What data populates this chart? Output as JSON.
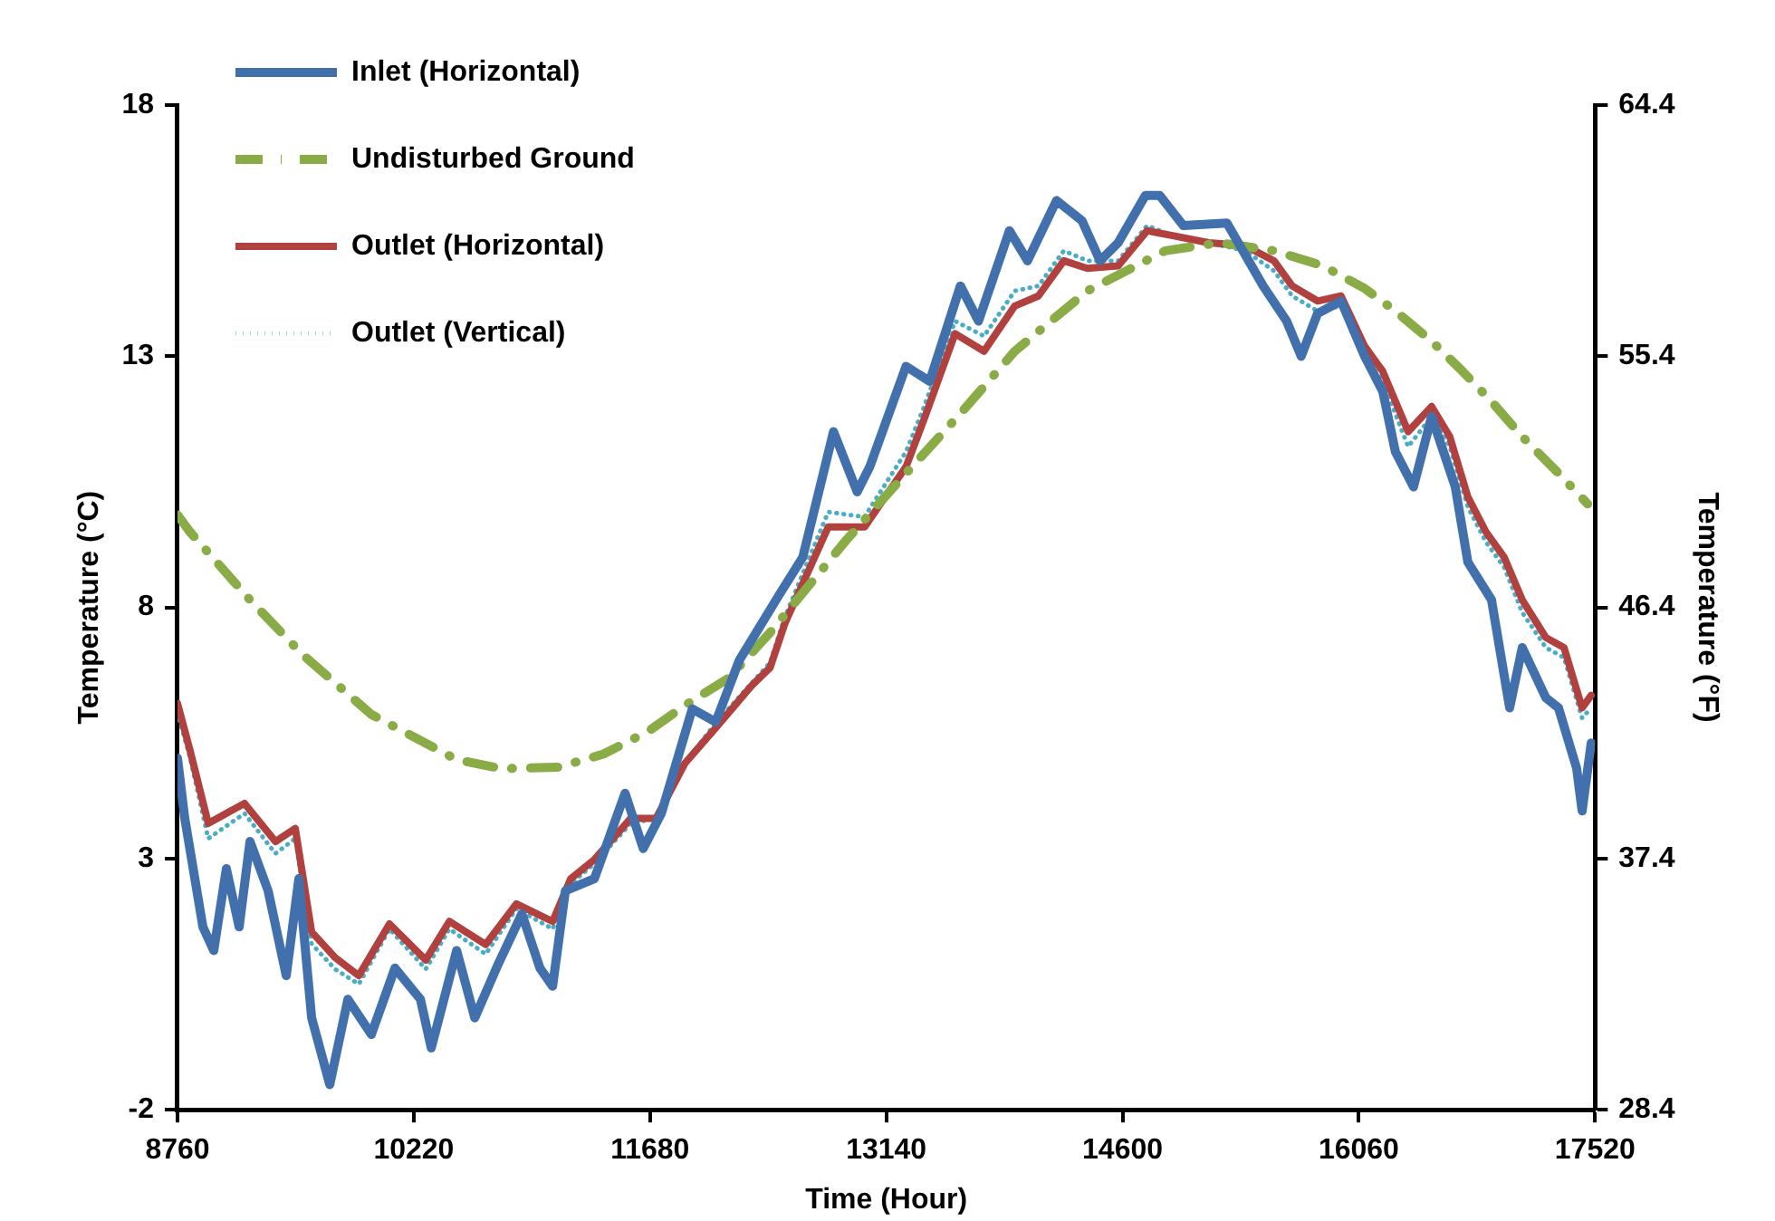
{
  "chart_data": {
    "type": "line",
    "xlabel": "Time (Hour)",
    "ylabel": "Temperature (°C)",
    "y2label": "Temperature (°F)",
    "xlim": [
      8760,
      17520
    ],
    "xticks": [
      8760,
      10220,
      11680,
      13140,
      14600,
      16060,
      17520
    ],
    "ylim": [
      -2,
      18
    ],
    "yticks": [
      -2,
      3,
      8,
      13,
      18
    ],
    "y2lim": [
      28.4,
      64.4
    ],
    "y2ticks": [
      28.4,
      37.4,
      46.4,
      55.4,
      64.4
    ],
    "grid": false,
    "legend": "top left",
    "marker": "none",
    "series": [
      {
        "name": "Inlet (Horizontal)",
        "color": "#4170ac",
        "line_style": "solid",
        "x": [
          8760,
          8805,
          8917,
          8984,
          9062,
          9141,
          9208,
          9320,
          9432,
          9510,
          9589,
          9701,
          9813,
          9958,
          10104,
          10261,
          10328,
          10485,
          10597,
          10742,
          10888,
          11000,
          11078,
          11157,
          11336,
          11526,
          11638,
          11750,
          11941,
          12086,
          12232,
          12478,
          12624,
          12814,
          12960,
          13038,
          13262,
          13408,
          13598,
          13710,
          13901,
          14013,
          14192,
          14349,
          14461,
          14573,
          14741,
          14830,
          14976,
          15245,
          15469,
          15614,
          15704,
          15805,
          15950,
          16096,
          16208,
          16286,
          16398,
          16510,
          16656,
          16734,
          16880,
          16992,
          17070,
          17216,
          17294,
          17406,
          17440,
          17496
        ],
        "values": [
          5.0,
          3.8,
          1.64,
          1.17,
          2.8,
          1.64,
          3.34,
          2.36,
          0.67,
          2.6,
          -0.17,
          -1.5,
          0.2,
          -0.5,
          0.82,
          0.2,
          -0.77,
          1.17,
          -0.17,
          0.9,
          1.9,
          0.82,
          0.46,
          2.36,
          2.6,
          4.3,
          3.2,
          3.9,
          5.98,
          5.72,
          6.95,
          8.25,
          9.0,
          11.5,
          10.3,
          10.8,
          12.8,
          12.5,
          14.4,
          13.7,
          15.5,
          14.9,
          16.1,
          15.7,
          14.9,
          15.26,
          16.2,
          16.2,
          15.6,
          15.65,
          14.4,
          13.7,
          13.0,
          13.85,
          14.1,
          13.0,
          12.3,
          11.1,
          10.4,
          11.8,
          10.4,
          8.9,
          8.15,
          6.0,
          7.2,
          6.2,
          6.0,
          4.8,
          3.95,
          5.3
        ]
      },
      {
        "name": "Undisturbed Ground",
        "color": "#8aac46",
        "line_style": "dashed",
        "x": [
          8760,
          8838,
          9208,
          9533,
          9958,
          10485,
          10765,
          11112,
          11392,
          11672,
          11896,
          12165,
          12422,
          12893,
          13262,
          13598,
          13934,
          14382,
          14864,
          15200,
          15536,
          15838,
          16096,
          16286,
          16510,
          16701,
          16880,
          17070,
          17294,
          17474
        ],
        "values": [
          9.84,
          9.5,
          8.15,
          7.06,
          5.87,
          4.97,
          4.79,
          4.82,
          5.08,
          5.54,
          6.05,
          6.59,
          7.5,
          9.34,
          10.67,
          11.86,
          13.1,
          14.3,
          15.1,
          15.26,
          15.1,
          14.8,
          14.35,
          13.9,
          13.3,
          12.7,
          12.1,
          11.4,
          10.67,
          10.06
        ]
      },
      {
        "name": "Outlet (Horizontal)",
        "color": "#b0413e",
        "line_style": "solid",
        "x": [
          8760,
          8838,
          8950,
          9174,
          9365,
          9488,
          9589,
          9734,
          9880,
          10070,
          10294,
          10440,
          10664,
          10854,
          11078,
          11190,
          11336,
          11560,
          11717,
          11896,
          12086,
          12310,
          12422,
          12512,
          12781,
          13005,
          13262,
          13374,
          13565,
          13744,
          13934,
          14080,
          14237,
          14382,
          14573,
          14752,
          14909,
          15133,
          15357,
          15536,
          15648,
          15805,
          15950,
          16096,
          16208,
          16365,
          16510,
          16622,
          16734,
          16846,
          16958,
          17070,
          17216,
          17328,
          17440,
          17496
        ],
        "values": [
          6.09,
          5.15,
          3.7,
          4.1,
          3.34,
          3.6,
          1.54,
          1.03,
          0.67,
          1.7,
          0.98,
          1.75,
          1.29,
          2.1,
          1.75,
          2.6,
          2.98,
          3.8,
          3.8,
          4.9,
          5.6,
          6.45,
          6.8,
          7.67,
          9.6,
          9.6,
          10.8,
          11.75,
          13.45,
          13.1,
          14.0,
          14.2,
          14.9,
          14.75,
          14.8,
          15.5,
          15.4,
          15.26,
          15.2,
          14.9,
          14.4,
          14.1,
          14.2,
          13.2,
          12.7,
          11.5,
          12.0,
          11.4,
          10.2,
          9.5,
          9.0,
          8.15,
          7.4,
          7.2,
          6.0,
          6.25
        ]
      },
      {
        "name": "Outlet (Vertical)",
        "color": "#4bacc6",
        "line_style": "dotted",
        "x": [
          8760,
          8838,
          8950,
          9174,
          9365,
          9488,
          9589,
          9734,
          9880,
          10070,
          10294,
          10440,
          10664,
          10854,
          11078,
          11190,
          11336,
          11560,
          11717,
          11896,
          12086,
          12310,
          12422,
          12512,
          12781,
          13005,
          13262,
          13374,
          13565,
          13744,
          13934,
          14080,
          14237,
          14382,
          14573,
          14752,
          14909,
          15133,
          15357,
          15536,
          15648,
          15805,
          15950,
          16096,
          16208,
          16365,
          16510,
          16622,
          16734,
          16846,
          16958,
          17070,
          17216,
          17328,
          17440,
          17496
        ],
        "values": [
          5.9,
          5.0,
          3.4,
          3.9,
          3.1,
          3.4,
          1.3,
          0.8,
          0.5,
          1.6,
          0.8,
          1.6,
          1.1,
          2.0,
          1.6,
          2.5,
          2.9,
          3.7,
          3.8,
          4.9,
          5.7,
          6.5,
          6.9,
          7.8,
          9.9,
          9.8,
          11.1,
          12.0,
          13.7,
          13.4,
          14.3,
          14.4,
          15.1,
          14.9,
          14.9,
          15.6,
          15.4,
          15.26,
          15.1,
          14.7,
          14.2,
          13.9,
          14.0,
          13.0,
          12.5,
          11.2,
          11.8,
          11.2,
          10.0,
          9.3,
          8.8,
          7.9,
          7.2,
          7.0,
          5.8,
          6.0
        ]
      }
    ]
  }
}
